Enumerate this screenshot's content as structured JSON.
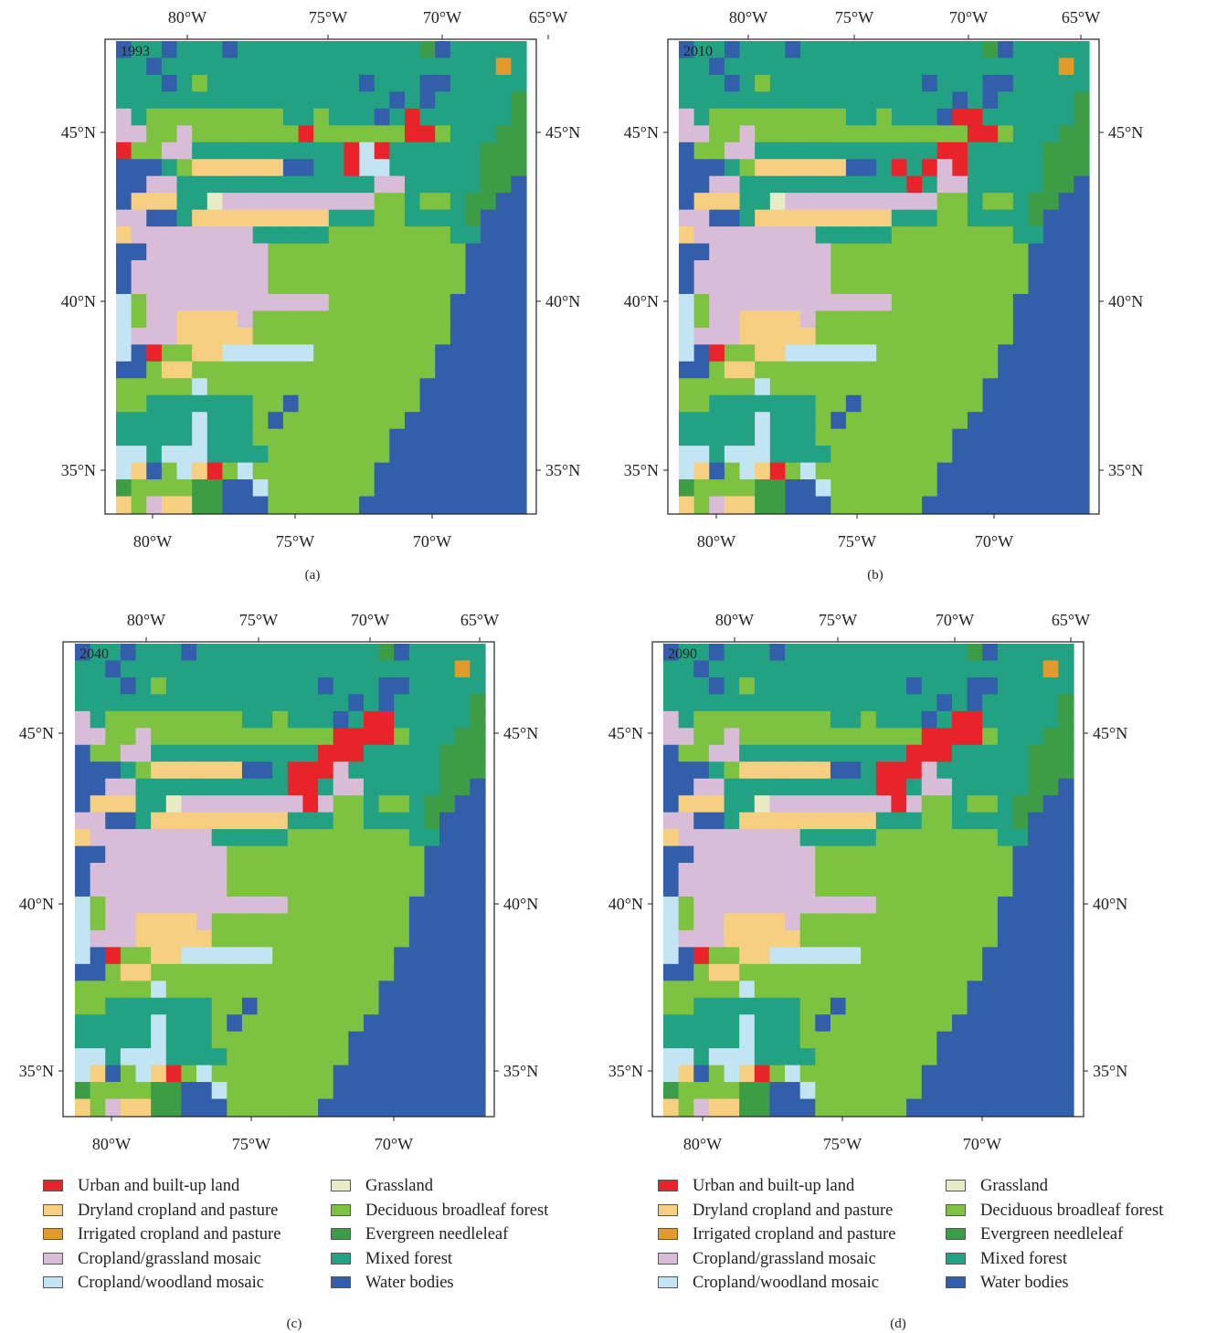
{
  "colors": {
    "urban": "#e8242a",
    "dryland": "#f7cf80",
    "irrigated": "#e39a2c",
    "mosaic_grass": "#d9bdd8",
    "mosaic_wood": "#c3e4f3",
    "grassland": "#e7ecc6",
    "deciduous": "#7ec241",
    "evergreen": "#3d9c46",
    "mixed": "#22a283",
    "water": "#325eaa"
  },
  "axes": {
    "top_ticks": [
      "80°W",
      "75°W",
      "70°W",
      "65°W"
    ],
    "bottom_ticks": [
      "80°W",
      "75°W",
      "70°W"
    ],
    "lat_ticks": [
      "45°N",
      "40°N",
      "35°N"
    ]
  },
  "panels": [
    {
      "year": "1993",
      "caption": "(a)"
    },
    {
      "year": "2010",
      "caption": "(b)"
    },
    {
      "year": "2040",
      "caption": "(c)"
    },
    {
      "year": "2090",
      "caption": "(d)"
    }
  ],
  "legend": {
    "items": [
      {
        "key": "urban",
        "label": "Urban and built-up land"
      },
      {
        "key": "dryland",
        "label": "Dryland cropland and pasture"
      },
      {
        "key": "irrigated",
        "label": "Irrigated cropland and pasture"
      },
      {
        "key": "mosaic_grass",
        "label": "Cropland/grassland mosaic"
      },
      {
        "key": "mosaic_wood",
        "label": "Cropland/woodland mosaic"
      },
      {
        "key": "grassland",
        "label": "Grassland"
      },
      {
        "key": "deciduous",
        "label": "Deciduous broadleaf forest"
      },
      {
        "key": "evergreen",
        "label": "Evergreen needleleaf"
      },
      {
        "key": "mixed",
        "label": "Mixed forest"
      },
      {
        "key": "water",
        "label": "Water bodies"
      }
    ]
  },
  "base_grid": [
    "MMMMMMMMMMMMMMMMMMMMEWMMMMM",
    "MMMMMMMMMMMMMMMMMMMMMMMMMIM",
    "MMMMMMMMMMMMMMMMMMMMMMMMMMMM",
    "MMMMMMMMMMMMMMMMMMMMMMMMMMEM",
    "WMMMMMMMMMMMMMMMMMMMMMMMMMEM",
    "WMMWMMMMMMMMMMMMMMMGMMMMMEEE",
    "WDWMMMMMMMMMMMMMMMGMMMMMEEEM",
    "WWWMMMMMMMMMMMMMMSGMMMMMEEEE",
    "WWWWMMMMMMMMMMMMMSSMMMMMEEWW",
    "WWWWMMMMMMMMMMMMMDDMMMMEEWWW",
    "WWWWMMMMMMMMMMMMMDDMMMMEWWWW",
    "WWDDDMMMMMMMMMDDDDDDDDMMWWWW",
    "WSSSSSSSSSDDDDDDDDDDDDDWWWWE",
    "WSSSSSSSSSDDDDDDDDDDDDDWWWWE",
    "WSSSSSSSSSDDDDDDDDDDDDDWWWWW",
    "WSSSSSSSSSSSSSDDDDDDDDWWWWWW",
    "SSSSSSSSSDDDDDDDDDDDDDWWWWWW",
    "SSSSSSSSSDDDDDDDDDDDDDWWWWWW",
    "DWWDDDDDDDDDDDDDDDDDDWWWWWWW",
    "WWDDDDDDDDDDDDDDDDDDDWWWWWWW",
    "DDDDDDDDDDDDDDDDDDDDWWWWWWWW",
    "DDDDDDDDDDDDDDDDDDDDWWWWWWWW",
    "DDDDDDDDDDDDDDDDDDDWWWWWWWWW",
    "DDDDDDDDDDDDDDDDDDWWWWWWWWWW",
    "CDDDDDDDDDDDDDDDDDWWWWWWWWWW",
    "CDDDDDDDDDDDDDDDDWWWWWWWWWWW",
    "CDDDDDDDDDDDDDDDDWWWWWWWWWWW",
    "CDDDDDDDDDDDDDDDWWWWWWWWWWWW",
    "DDDDDDDDDDDDDDDWWWWWWWWWWWWW",
    "DDDDDDDDDDDDDDDWWWWWWWWWWWWW",
    "DDDDDDDDDDDDDDWWWWWWWWWWWWWW",
    "DDDDDDDDDDDDDDWWWWWWWWWWWWWW",
    "DDDDDDDDDDDDDWWWWWWWWWWWWWWW",
    "DDDDDDDDDDDDDWWWWWWWWWWWWWWW",
    "DDDDDDDDDDDDWWWWWWWWWWWWWWWW",
    "DDDDDDDDDDDDWWWWWWWWWWWWWWWW",
    "DDDDDDDDDDDDWWWWWWWWWWWWWWWW",
    "DDDDDDDDDDDDWWWWWWWWWWWWWWWW",
    "DDDDDDDDDDDWWWWWWWWWWWWWWWWW",
    "DDDDDDDDDDWWWWWWWWWWWWWWWWWW",
    "DDDDDDDDDDWWWWWWWWWWWWWWWWWW",
    "DDDDDDDDDDWWWWWWWWWWWWWWWWWW"
  ],
  "shared_cells": [
    [
      0,
      1,
      "W"
    ],
    [
      2,
      3,
      "W"
    ],
    [
      3,
      0,
      "W"
    ],
    [
      3,
      4,
      "W"
    ],
    [
      5,
      4,
      "D"
    ],
    [
      7,
      1,
      "W"
    ],
    [
      2,
      8,
      "D"
    ],
    [
      3,
      8,
      "D"
    ],
    [
      4,
      8,
      "D"
    ],
    [
      5,
      8,
      "D"
    ],
    [
      6,
      8,
      "D"
    ],
    [
      7,
      8,
      "D"
    ],
    [
      8,
      8,
      "D"
    ],
    [
      9,
      8,
      "D"
    ],
    [
      10,
      8,
      "D"
    ],
    [
      2,
      9,
      "D"
    ],
    [
      3,
      9,
      "D"
    ],
    [
      4,
      9,
      "D"
    ],
    [
      5,
      9,
      "D"
    ],
    [
      6,
      9,
      "D"
    ],
    [
      7,
      9,
      "D"
    ],
    [
      8,
      9,
      "D"
    ],
    [
      9,
      9,
      "D"
    ],
    [
      10,
      9,
      "D"
    ],
    [
      11,
      9,
      "D"
    ],
    [
      12,
      9,
      "D"
    ],
    [
      13,
      7,
      "D"
    ],
    [
      13,
      8,
      "D"
    ],
    [
      13,
      9,
      "D"
    ],
    [
      13,
      10,
      "D"
    ],
    [
      14,
      9,
      "D"
    ],
    [
      14,
      10,
      "D"
    ],
    [
      15,
      9,
      "D"
    ],
    [
      16,
      10,
      "D"
    ],
    [
      17,
      9,
      "D"
    ],
    [
      17,
      10,
      "D"
    ],
    [
      18,
      9,
      "D"
    ],
    [
      18,
      10,
      "D"
    ],
    [
      19,
      9,
      "D"
    ],
    [
      19,
      10,
      "D"
    ],
    [
      20,
      10,
      "D"
    ],
    [
      21,
      10,
      "D"
    ],
    [
      14,
      11,
      "M"
    ],
    [
      17,
      11,
      "M"
    ],
    [
      18,
      11,
      "M"
    ],
    [
      19,
      11,
      "M"
    ],
    [
      18,
      12,
      "M"
    ],
    [
      16,
      13,
      "M"
    ],
    [
      11,
      12,
      "W"
    ],
    [
      12,
      12,
      "W"
    ],
    [
      18,
      6,
      "W"
    ],
    [
      20,
      6,
      "W"
    ],
    [
      16,
      5,
      "W"
    ],
    [
      20,
      5,
      "W"
    ],
    [
      17,
      7,
      "W"
    ],
    [
      21,
      4,
      "W"
    ],
    [
      19,
      15,
      "M"
    ],
    [
      20,
      15,
      "M"
    ],
    [
      21,
      16,
      "C"
    ],
    [
      20,
      17,
      "D"
    ],
    [
      21,
      17,
      "D"
    ],
    [
      1,
      9,
      "S"
    ],
    [
      0,
      8,
      "S"
    ],
    [
      0,
      9,
      "S"
    ],
    [
      3,
      10,
      "D"
    ],
    [
      5,
      10,
      "D"
    ],
    [
      8,
      10,
      "D"
    ],
    [
      4,
      11,
      "S"
    ],
    [
      4,
      10,
      "S"
    ],
    [
      3,
      11,
      "S"
    ],
    [
      1,
      11,
      "D"
    ],
    [
      2,
      11,
      "D"
    ],
    [
      0,
      12,
      "D"
    ],
    [
      4,
      12,
      "D"
    ],
    [
      1,
      16,
      "Y"
    ],
    [
      2,
      16,
      "Y"
    ],
    [
      3,
      16,
      "Y"
    ],
    [
      6,
      17,
      "G"
    ],
    [
      0,
      14,
      "W"
    ],
    [
      0,
      13,
      "W"
    ],
    [
      1,
      14,
      "W"
    ],
    [
      2,
      14,
      "S"
    ],
    [
      3,
      14,
      "S"
    ],
    [
      5,
      13,
      "Y"
    ],
    [
      6,
      13,
      "Y"
    ],
    [
      7,
      13,
      "Y"
    ],
    [
      8,
      13,
      "Y"
    ],
    [
      9,
      13,
      "Y"
    ],
    [
      10,
      13,
      "Y"
    ],
    [
      7,
      17,
      "S"
    ],
    [
      8,
      17,
      "S"
    ],
    [
      9,
      17,
      "S"
    ],
    [
      10,
      17,
      "S"
    ],
    [
      11,
      17,
      "S"
    ],
    [
      12,
      17,
      "S"
    ],
    [
      13,
      17,
      "S"
    ],
    [
      14,
      17,
      "S"
    ],
    [
      15,
      17,
      "S"
    ],
    [
      16,
      17,
      "S"
    ],
    [
      5,
      18,
      "Y"
    ],
    [
      6,
      18,
      "Y"
    ],
    [
      7,
      18,
      "Y"
    ],
    [
      8,
      18,
      "Y"
    ],
    [
      9,
      18,
      "Y"
    ],
    [
      10,
      18,
      "Y"
    ],
    [
      11,
      18,
      "Y"
    ],
    [
      12,
      18,
      "Y"
    ],
    [
      13,
      18,
      "Y"
    ],
    [
      0,
      18,
      "S"
    ],
    [
      0,
      19,
      "S"
    ],
    [
      1,
      18,
      "S"
    ],
    [
      1,
      19,
      "S"
    ],
    [
      2,
      19,
      "S"
    ],
    [
      3,
      19,
      "S"
    ],
    [
      4,
      19,
      "S"
    ],
    [
      5,
      19,
      "S"
    ],
    [
      6,
      19,
      "S"
    ],
    [
      7,
      19,
      "S"
    ],
    [
      8,
      19,
      "S"
    ],
    [
      0,
      20,
      "Y"
    ],
    [
      0,
      21,
      "W"
    ],
    [
      1,
      21,
      "W"
    ],
    [
      0,
      22,
      "W"
    ],
    [
      0,
      23,
      "W"
    ],
    [
      0,
      24,
      "W"
    ],
    [
      0,
      25,
      "W"
    ],
    [
      0,
      26,
      "W"
    ],
    [
      0,
      27,
      "C"
    ],
    [
      0,
      28,
      "C"
    ],
    [
      0,
      29,
      "C"
    ],
    [
      0,
      30,
      "C"
    ],
    [
      0,
      31,
      "C"
    ],
    [
      1,
      27,
      "D"
    ],
    [
      1,
      28,
      "D"
    ],
    [
      4,
      29,
      "Y"
    ],
    [
      5,
      29,
      "Y"
    ],
    [
      6,
      29,
      "Y"
    ],
    [
      7,
      29,
      "Y"
    ],
    [
      4,
      30,
      "Y"
    ],
    [
      5,
      30,
      "Y"
    ],
    [
      6,
      30,
      "Y"
    ],
    [
      7,
      30,
      "Y"
    ],
    [
      8,
      30,
      "Y"
    ],
    [
      5,
      31,
      "Y"
    ],
    [
      6,
      31,
      "Y"
    ],
    [
      7,
      31,
      "Y"
    ],
    [
      2,
      31,
      "U"
    ],
    [
      8,
      31,
      "C"
    ],
    [
      9,
      31,
      "C"
    ],
    [
      10,
      31,
      "C"
    ],
    [
      11,
      31,
      "C"
    ],
    [
      12,
      31,
      "C"
    ],
    [
      7,
      32,
      "C"
    ],
    [
      8,
      32,
      "C"
    ],
    [
      9,
      32,
      "C"
    ],
    [
      10,
      32,
      "C"
    ],
    [
      11,
      32,
      "C"
    ],
    [
      3,
      33,
      "Y"
    ],
    [
      4,
      33,
      "Y"
    ],
    [
      5,
      35,
      "C"
    ],
    [
      4,
      36,
      "C"
    ],
    [
      2,
      36,
      "M"
    ],
    [
      3,
      36,
      "M"
    ],
    [
      5,
      36,
      "M"
    ],
    [
      6,
      36,
      "M"
    ],
    [
      7,
      36,
      "M"
    ],
    [
      8,
      36,
      "M"
    ],
    [
      2,
      37,
      "M"
    ],
    [
      3,
      37,
      "M"
    ],
    [
      4,
      37,
      "M"
    ],
    [
      5,
      37,
      "M"
    ],
    [
      6,
      37,
      "M"
    ],
    [
      7,
      37,
      "M"
    ],
    [
      8,
      37,
      "M"
    ],
    [
      1,
      38,
      "M"
    ],
    [
      2,
      38,
      "M"
    ],
    [
      3,
      38,
      "M"
    ],
    [
      4,
      38,
      "M"
    ],
    [
      5,
      38,
      "C"
    ],
    [
      6,
      38,
      "M"
    ],
    [
      7,
      38,
      "M"
    ],
    [
      8,
      38,
      "M"
    ],
    [
      0,
      39,
      "M"
    ],
    [
      1,
      39,
      "M"
    ],
    [
      2,
      39,
      "M"
    ],
    [
      3,
      39,
      "M"
    ],
    [
      4,
      39,
      "M"
    ],
    [
      5,
      39,
      "C"
    ],
    [
      6,
      39,
      "M"
    ],
    [
      7,
      39,
      "M"
    ],
    [
      8,
      39,
      "M"
    ],
    [
      0,
      40,
      "M"
    ],
    [
      1,
      40,
      "M"
    ],
    [
      2,
      40,
      "M"
    ],
    [
      3,
      40,
      "M"
    ],
    [
      4,
      40,
      "M"
    ],
    [
      5,
      40,
      "C"
    ],
    [
      6,
      40,
      "M"
    ],
    [
      7,
      40,
      "M"
    ],
    [
      8,
      40,
      "M"
    ],
    [
      0,
      41,
      "M"
    ],
    [
      1,
      41,
      "M"
    ],
    [
      2,
      41,
      "M"
    ],
    [
      3,
      41,
      "M"
    ],
    [
      4,
      41,
      "M"
    ],
    [
      5,
      41,
      "C"
    ],
    [
      6,
      41,
      "M"
    ],
    [
      7,
      41,
      "M"
    ],
    [
      8,
      41,
      "M"
    ],
    [
      9,
      37,
      "D"
    ],
    [
      9,
      38,
      "D"
    ],
    [
      9,
      39,
      "D"
    ],
    [
      10,
      38,
      "W"
    ],
    [
      10,
      39,
      "W"
    ],
    [
      11,
      36,
      "W"
    ],
    [
      0,
      42,
      "C"
    ],
    [
      1,
      42,
      "C"
    ],
    [
      0,
      43,
      "C"
    ],
    [
      1,
      43,
      "C"
    ],
    [
      0,
      44,
      "C"
    ],
    [
      1,
      44,
      "C"
    ],
    [
      0,
      45,
      "C"
    ],
    [
      1,
      45,
      "C"
    ],
    [
      2,
      42,
      "M"
    ],
    [
      3,
      42,
      "C"
    ],
    [
      4,
      42,
      "C"
    ],
    [
      5,
      42,
      "C"
    ],
    [
      6,
      42,
      "M"
    ],
    [
      7,
      42,
      "M"
    ],
    [
      8,
      42,
      "M"
    ],
    [
      9,
      42,
      "M"
    ],
    [
      2,
      43,
      "D"
    ],
    [
      3,
      43,
      "M"
    ],
    [
      4,
      43,
      "Y"
    ],
    [
      5,
      43,
      "Y"
    ],
    [
      6,
      43,
      "Y"
    ],
    [
      7,
      43,
      "M"
    ],
    [
      8,
      43,
      "D"
    ],
    [
      9,
      43,
      "M"
    ],
    [
      1,
      44,
      "Y"
    ],
    [
      2,
      44,
      "W"
    ],
    [
      3,
      44,
      "D"
    ],
    [
      4,
      44,
      "C"
    ],
    [
      5,
      44,
      "Y"
    ],
    [
      6,
      44,
      "U"
    ],
    [
      7,
      44,
      "D"
    ],
    [
      8,
      44,
      "C"
    ],
    [
      0,
      45,
      "E"
    ],
    [
      1,
      45,
      "E"
    ],
    [
      2,
      45,
      "C"
    ],
    [
      3,
      45,
      "E"
    ],
    [
      4,
      45,
      "E"
    ],
    [
      5,
      45,
      "C"
    ],
    [
      6,
      45,
      "E"
    ],
    [
      7,
      45,
      "E"
    ],
    [
      0,
      46,
      "E"
    ],
    [
      1,
      46,
      "D"
    ],
    [
      2,
      46,
      "D"
    ],
    [
      3,
      46,
      "D"
    ],
    [
      4,
      46,
      "D"
    ],
    [
      5,
      46,
      "E"
    ],
    [
      6,
      46,
      "E"
    ],
    [
      0,
      47,
      "Y"
    ],
    [
      1,
      47,
      "D"
    ],
    [
      2,
      47,
      "S"
    ],
    [
      3,
      47,
      "Y"
    ],
    [
      4,
      47,
      "Y"
    ],
    [
      5,
      47,
      "E"
    ],
    [
      6,
      47,
      "E"
    ],
    [
      8,
      45,
      "Y"
    ],
    [
      9,
      45,
      "D"
    ],
    [
      9,
      46,
      "C"
    ],
    [
      9,
      44,
      "D"
    ],
    [
      8,
      46,
      "W"
    ],
    [
      7,
      46,
      "W"
    ],
    [
      7,
      47,
      "W"
    ],
    [
      8,
      47,
      "W"
    ],
    [
      9,
      47,
      "W"
    ]
  ],
  "scenario_cells": {
    "1993": [
      [
        19,
        8,
        "U"
      ],
      [
        19,
        9,
        "U"
      ],
      [
        20,
        9,
        "U"
      ],
      [
        12,
        9,
        "U"
      ],
      [
        13,
        9,
        "D"
      ],
      [
        17,
        11,
        "U"
      ],
      [
        15,
        11,
        "U"
      ],
      [
        16,
        11,
        "C"
      ],
      [
        0,
        11,
        "U"
      ],
      [
        15,
        13,
        "U"
      ],
      [
        16,
        12,
        "C"
      ],
      [
        17,
        12,
        "C"
      ]
    ],
    "2010": [
      [
        18,
        8,
        "U"
      ],
      [
        19,
        8,
        "U"
      ],
      [
        20,
        9,
        "U"
      ],
      [
        19,
        10,
        "U"
      ],
      [
        20,
        10,
        "U"
      ],
      [
        17,
        11,
        "U"
      ],
      [
        18,
        11,
        "U"
      ],
      [
        18,
        12,
        "U"
      ],
      [
        16,
        12,
        "U"
      ],
      [
        16,
        13,
        "U"
      ],
      [
        15,
        14,
        "U"
      ],
      [
        14,
        12,
        "U"
      ],
      [
        14,
        13,
        "U"
      ]
    ],
    "2040": [
      [
        19,
        8,
        "U"
      ],
      [
        20,
        8,
        "U"
      ],
      [
        20,
        9,
        "U"
      ],
      [
        18,
        9,
        "U"
      ],
      [
        19,
        9,
        "U"
      ],
      [
        18,
        10,
        "U"
      ],
      [
        19,
        10,
        "U"
      ],
      [
        17,
        10,
        "U"
      ],
      [
        16,
        11,
        "U"
      ],
      [
        17,
        11,
        "U"
      ],
      [
        18,
        11,
        "U"
      ],
      [
        16,
        12,
        "U"
      ],
      [
        14,
        13,
        "U"
      ],
      [
        15,
        13,
        "U"
      ],
      [
        14,
        14,
        "U"
      ],
      [
        15,
        14,
        "U"
      ],
      [
        15,
        15,
        "U"
      ],
      [
        15,
        16,
        "U"
      ]
    ],
    "2090": [
      [
        19,
        8,
        "U"
      ],
      [
        20,
        8,
        "U"
      ],
      [
        20,
        9,
        "U"
      ],
      [
        18,
        9,
        "U"
      ],
      [
        19,
        9,
        "U"
      ],
      [
        18,
        10,
        "U"
      ],
      [
        19,
        10,
        "U"
      ],
      [
        17,
        10,
        "U"
      ],
      [
        16,
        11,
        "U"
      ],
      [
        17,
        11,
        "U"
      ],
      [
        18,
        11,
        "U"
      ],
      [
        16,
        12,
        "U"
      ],
      [
        14,
        13,
        "U"
      ],
      [
        15,
        13,
        "U"
      ],
      [
        14,
        14,
        "U"
      ],
      [
        15,
        14,
        "U"
      ],
      [
        15,
        15,
        "U"
      ],
      [
        15,
        16,
        "U"
      ]
    ]
  }
}
